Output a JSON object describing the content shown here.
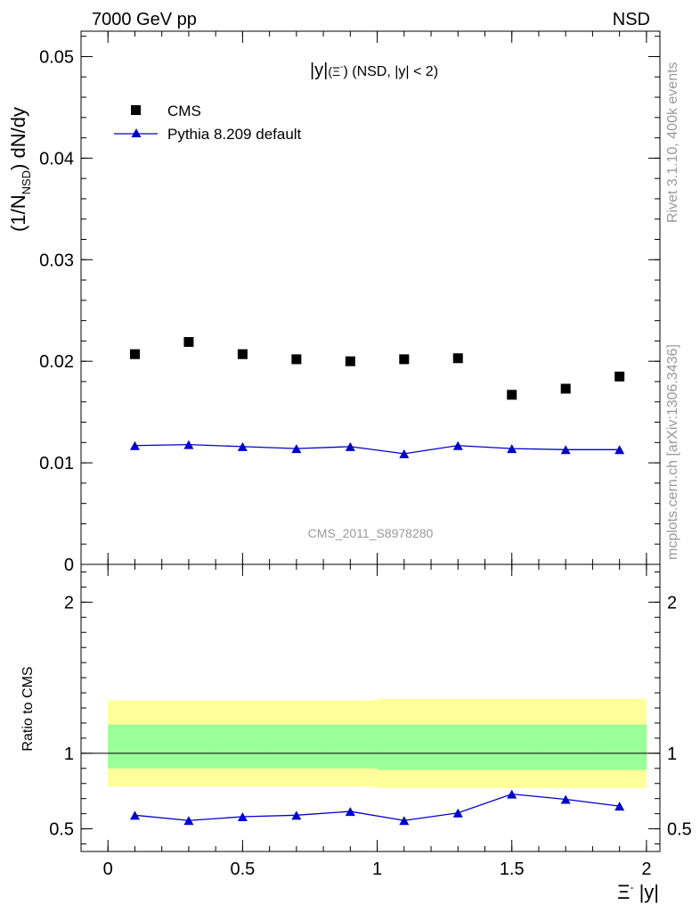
{
  "header": {
    "left": "7000 GeV pp",
    "right": "NSD"
  },
  "side_labels": {
    "top": "Rivet 3.1.10,  400k events",
    "bottom": "mcplots.cern.ch [arXiv:1306.3436]"
  },
  "chart_data": [
    {
      "type": "scatter",
      "title": "|y|(Ξ⁻) (NSD, |y| < 2)",
      "title_main": "|y|",
      "title_paren": "(Ξ",
      "title_sup": "-",
      "title_rest": ") (NSD, |y| < 2)",
      "ylabel": "(1/N",
      "ylabel_sub": "NSD",
      "ylabel_rest": ") dN/dy",
      "watermark": "CMS_2011_S8978280",
      "xlim": [
        -0.1,
        2.05
      ],
      "ylim": [
        0,
        0.0525
      ],
      "yticks": [
        "0",
        "0.01",
        "0.02",
        "0.03",
        "0.04",
        "0.05"
      ],
      "ytick_values": [
        0,
        0.01,
        0.02,
        0.03,
        0.04,
        0.05
      ],
      "legend_position": "top-left",
      "series": [
        {
          "name": "CMS",
          "marker": "square",
          "color": "#000000",
          "x": [
            0.1,
            0.3,
            0.5,
            0.7,
            0.9,
            1.1,
            1.3,
            1.5,
            1.7,
            1.9
          ],
          "values": [
            0.0207,
            0.0219,
            0.0207,
            0.0202,
            0.02,
            0.0202,
            0.0203,
            0.0167,
            0.0173,
            0.0185
          ]
        },
        {
          "name": "Pythia 8.209 default",
          "marker": "triangle",
          "line": true,
          "color": "#0000cc",
          "x": [
            0.1,
            0.3,
            0.5,
            0.7,
            0.9,
            1.1,
            1.3,
            1.5,
            1.7,
            1.9
          ],
          "values": [
            0.0117,
            0.0118,
            0.0116,
            0.0114,
            0.0116,
            0.0109,
            0.0117,
            0.0114,
            0.0113,
            0.0113
          ]
        }
      ]
    },
    {
      "type": "line",
      "ylabel": "Ratio to CMS",
      "xlabel": "Ξ⁻ |y|",
      "xlabel_main": "Ξ",
      "xlabel_sup": "-",
      "xlabel_rest": " |y|",
      "xlim": [
        -0.1,
        2.05
      ],
      "ylim": [
        0.35,
        2.25
      ],
      "xticks": [
        "0",
        "0.5",
        "1",
        "1.5",
        "2"
      ],
      "xtick_values": [
        0,
        0.5,
        1,
        1.5,
        2
      ],
      "yticks": [
        "0.5",
        "1",
        "2"
      ],
      "ytick_values": [
        0.5,
        1,
        2
      ],
      "reference_line": 1,
      "bands": [
        {
          "name": "total uncertainty",
          "color": "#ffff99",
          "lower": [
            0.78,
            0.78,
            0.78,
            0.78,
            0.78,
            0.77,
            0.77,
            0.77,
            0.77,
            0.77
          ],
          "upper": [
            1.35,
            1.35,
            1.35,
            1.35,
            1.35,
            1.36,
            1.36,
            1.36,
            1.36,
            1.36
          ]
        },
        {
          "name": "statistical uncertainty",
          "color": "#99ff99",
          "lower": [
            0.9,
            0.9,
            0.9,
            0.9,
            0.9,
            0.89,
            0.89,
            0.89,
            0.89,
            0.89
          ],
          "upper": [
            1.19,
            1.19,
            1.19,
            1.19,
            1.19,
            1.19,
            1.19,
            1.19,
            1.19,
            1.19
          ]
        }
      ],
      "band_edges": [
        0,
        0.2,
        0.4,
        0.6,
        0.8,
        1.0,
        1.2,
        1.4,
        1.6,
        1.8,
        2.0
      ],
      "series": [
        {
          "name": "Pythia 8.209 default",
          "color": "#0000cc",
          "x": [
            0.1,
            0.3,
            0.5,
            0.7,
            0.9,
            1.1,
            1.3,
            1.5,
            1.7,
            1.9
          ],
          "values": [
            0.59,
            0.555,
            0.58,
            0.59,
            0.615,
            0.555,
            0.605,
            0.73,
            0.695,
            0.65
          ]
        }
      ]
    }
  ]
}
